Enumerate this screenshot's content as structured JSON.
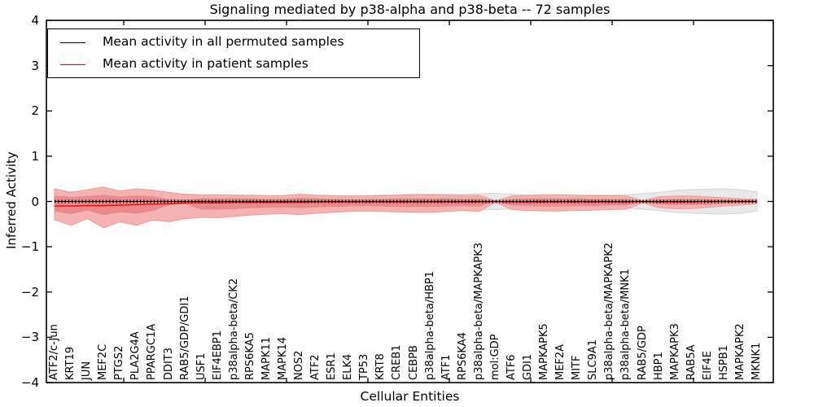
{
  "title": "Signaling mediated by p38-alpha and p38-beta -- 72 samples",
  "axes": {
    "ylabel": "Inferred Activity",
    "xlabel": "Cellular Entities",
    "yticklabels": [
      "4",
      "3",
      "2",
      "1",
      "0",
      "−1",
      "−2",
      "−3",
      "−4"
    ],
    "ytickvalues": [
      4,
      3,
      2,
      1,
      0,
      -1,
      -2,
      -3,
      -4
    ]
  },
  "colors": {
    "permuted_line": "#000000",
    "patient_line": "#ff0000",
    "permuted_band": "#e9e9e9",
    "permuted_band_edge": "#d4d4d4",
    "patient_band_outer": "#f5b2b2",
    "patient_band_outer_edge": "#eb9c9c",
    "patient_band_inner": "#e98b8b"
  },
  "chart_data": {
    "type": "line",
    "title": "Signaling mediated by p38-alpha and p38-beta -- 72 samples",
    "xlabel": "Cellular Entities",
    "ylabel": "Inferred Activity",
    "ylim": [
      -4,
      4
    ],
    "grid": false,
    "legend_position": "upper left",
    "categories": [
      "ATF2/c-Jun",
      "KRT19",
      "JUN",
      "MEF2C",
      "PTGS2",
      "PLA2G4A",
      "PPARGC1A",
      "DDIT3",
      "RAB5/GDP/GDI1",
      "USF1",
      "EIF4EBP1",
      "p38alpha-beta/CK2",
      "RPS6KA5",
      "MAPK11",
      "MAPK14",
      "NOS2",
      "ATF2",
      "ESR1",
      "ELK4",
      "TP53",
      "KRT8",
      "CREB1",
      "CEBPB",
      "p38alpha-beta/HBP1",
      "ATF1",
      "RPS6KA4",
      "p38alpha-beta/MAPKAPK3",
      "mol:GDP",
      "ATF6",
      "GDI1",
      "MAPKAPK5",
      "MEF2A",
      "MITF",
      "SLC9A1",
      "p38alpha-beta/MAPKAPK2",
      "p38alpha-beta/MNK1",
      "RAB5/GDP",
      "HBP1",
      "MAPKAPK3",
      "RAB5A",
      "EIF4E",
      "HSPB1",
      "MAPKAPK2",
      "MKNK1"
    ],
    "series": [
      {
        "name": "Mean activity in all permuted samples",
        "color": "#000000",
        "values": [
          0,
          0,
          0,
          0,
          0,
          0,
          0,
          0,
          0,
          0,
          0,
          0,
          0,
          0,
          0,
          0,
          0,
          0,
          0,
          0,
          0,
          0,
          0,
          0,
          0,
          0,
          0,
          0,
          0,
          0,
          0,
          0,
          0,
          0,
          0,
          0,
          0,
          0,
          0,
          0,
          0,
          0,
          0,
          0
        ]
      },
      {
        "name": "Mean activity in patient samples",
        "color": "#ff0000",
        "values": [
          -0.1,
          -0.1,
          -0.09,
          -0.09,
          -0.08,
          -0.07,
          -0.06,
          -0.05,
          -0.03,
          -0.03,
          -0.03,
          -0.02,
          -0.02,
          -0.02,
          -0.02,
          -0.02,
          -0.01,
          -0.01,
          -0.01,
          -0.01,
          -0.01,
          -0.01,
          -0.01,
          -0.01,
          -0.01,
          -0.01,
          -0.01,
          0,
          -0.01,
          -0.01,
          -0.01,
          -0.01,
          -0.01,
          -0.01,
          -0.01,
          -0.01,
          0,
          -0.01,
          -0.01,
          -0.01,
          0,
          0,
          0,
          0
        ]
      }
    ],
    "bands": [
      {
        "name": "permuted-sample-range",
        "color": "#e9e9e9",
        "upper": [
          0.14,
          0.22,
          0.16,
          0.12,
          0.11,
          0.11,
          0.11,
          0.12,
          0.12,
          0.11,
          0.11,
          0.11,
          0.11,
          0.11,
          0.11,
          0.12,
          0.12,
          0.12,
          0.12,
          0.13,
          0.14,
          0.15,
          0.16,
          0.16,
          0.16,
          0.16,
          0.17,
          0.18,
          0.16,
          0.14,
          0.14,
          0.14,
          0.14,
          0.14,
          0.14,
          0.15,
          0.17,
          0.2,
          0.24,
          0.26,
          0.27,
          0.28,
          0.26,
          0.21
        ],
        "lower": [
          -0.14,
          -0.22,
          -0.16,
          -0.12,
          -0.11,
          -0.11,
          -0.11,
          -0.12,
          -0.12,
          -0.11,
          -0.11,
          -0.11,
          -0.11,
          -0.11,
          -0.11,
          -0.12,
          -0.12,
          -0.12,
          -0.12,
          -0.13,
          -0.14,
          -0.15,
          -0.16,
          -0.16,
          -0.16,
          -0.16,
          -0.17,
          -0.18,
          -0.16,
          -0.14,
          -0.14,
          -0.14,
          -0.14,
          -0.14,
          -0.14,
          -0.15,
          -0.17,
          -0.2,
          -0.24,
          -0.26,
          -0.27,
          -0.28,
          -0.26,
          -0.21
        ]
      },
      {
        "name": "patient-sample-outer-range",
        "color": "#f5b2b2",
        "upper": [
          0.28,
          0.2,
          0.26,
          0.32,
          0.23,
          0.28,
          0.25,
          0.2,
          0.16,
          0.15,
          0.15,
          0.14,
          0.14,
          0.13,
          0.13,
          0.16,
          0.14,
          0.13,
          0.12,
          0.12,
          0.13,
          0.14,
          0.15,
          0.15,
          0.14,
          0.13,
          0.14,
          0.01,
          0.12,
          0.14,
          0.15,
          0.15,
          0.14,
          0.13,
          0.13,
          0.12,
          0.02,
          0.1,
          0.12,
          0.12,
          0.1,
          0.08,
          0.06,
          0.05
        ],
        "lower": [
          -0.4,
          -0.53,
          -0.38,
          -0.58,
          -0.45,
          -0.53,
          -0.41,
          -0.45,
          -0.38,
          -0.35,
          -0.36,
          -0.33,
          -0.3,
          -0.28,
          -0.27,
          -0.29,
          -0.26,
          -0.24,
          -0.22,
          -0.21,
          -0.22,
          -0.23,
          -0.24,
          -0.24,
          -0.22,
          -0.2,
          -0.22,
          -0.02,
          -0.18,
          -0.2,
          -0.21,
          -0.21,
          -0.2,
          -0.19,
          -0.18,
          -0.17,
          -0.03,
          -0.14,
          -0.16,
          -0.16,
          -0.13,
          -0.1,
          -0.08,
          -0.05
        ]
      },
      {
        "name": "patient-sample-inner-range",
        "color": "#e98b8b",
        "upper": [
          0.13,
          0.1,
          0.12,
          0.15,
          0.11,
          0.13,
          0.12,
          0.05,
          0.04,
          0.07,
          0.07,
          0.07,
          0.07,
          0.06,
          0.06,
          0.08,
          0.07,
          0.06,
          0.05,
          0.05,
          0.06,
          0.07,
          0.07,
          0.07,
          0.07,
          0.06,
          0.07,
          0.005,
          0.06,
          0.07,
          0.07,
          0.07,
          0.07,
          0.06,
          0.06,
          0.06,
          0.01,
          0.05,
          0.06,
          0.06,
          0.05,
          0.04,
          0.03,
          0.02
        ],
        "lower": [
          -0.22,
          -0.28,
          -0.2,
          -0.3,
          -0.24,
          -0.27,
          -0.21,
          -0.08,
          -0.06,
          -0.18,
          -0.18,
          -0.17,
          -0.15,
          -0.14,
          -0.13,
          -0.15,
          -0.13,
          -0.12,
          -0.11,
          -0.1,
          -0.11,
          -0.12,
          -0.12,
          -0.12,
          -0.11,
          -0.1,
          -0.11,
          -0.008,
          -0.09,
          -0.1,
          -0.11,
          -0.11,
          -0.1,
          -0.1,
          -0.09,
          -0.09,
          -0.015,
          -0.07,
          -0.08,
          -0.08,
          -0.07,
          -0.05,
          -0.04,
          -0.02
        ]
      }
    ]
  }
}
